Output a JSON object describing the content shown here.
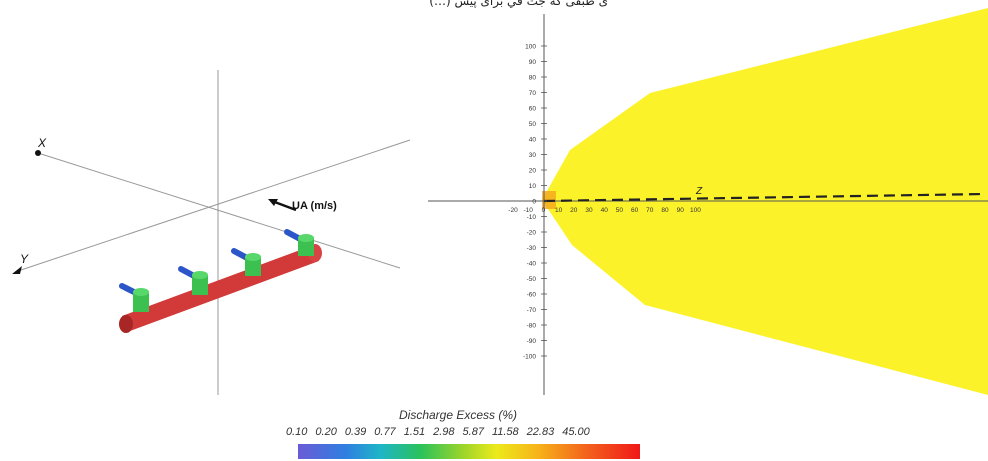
{
  "caption": "ى طبقى كه جت في براى پيش (…)",
  "left_diagram": {
    "axis_x_label": "X",
    "axis_y_label": "Y",
    "flow_label": "UA (m/s)",
    "colors": {
      "pipe": "#d23a3a",
      "nozzle": "#3cc150",
      "jet": "#2b55c9"
    },
    "nozzle_count": 4
  },
  "right_plot": {
    "axis_label_z": "Z",
    "y_ticks": [
      "100",
      "90",
      "80",
      "70",
      "60",
      "50",
      "40",
      "30",
      "20",
      "10",
      "0",
      "-10",
      "-20",
      "-30",
      "-40",
      "-50",
      "-60",
      "-70",
      "-80",
      "-90",
      "-100"
    ],
    "x_ticks": [
      "-20",
      "-10",
      "0",
      "10",
      "20",
      "30",
      "40",
      "50",
      "60",
      "70",
      "80",
      "90",
      "100"
    ],
    "plume_color": "#fbf22a",
    "center_color": "#f2a01c"
  },
  "legend": {
    "title": "Discharge Excess  (%)",
    "ticks": [
      "0.10",
      "0.20",
      "0.39",
      "0.77",
      "1.51",
      "2.98",
      "5.87",
      "11.58",
      "22.83",
      "45.00"
    ]
  }
}
